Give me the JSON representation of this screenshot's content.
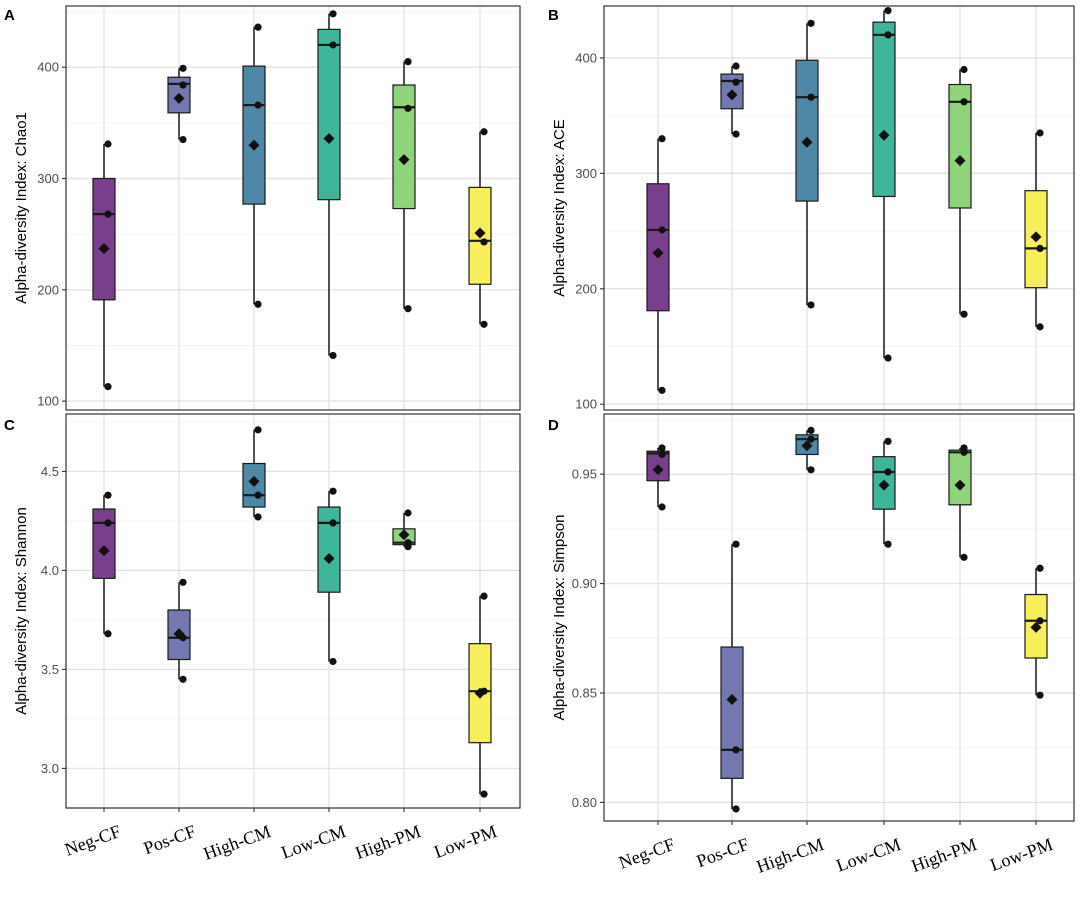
{
  "colors": {
    "Neg-CF": "#7a3f8c",
    "Pos-CF": "#7379b0",
    "High-CM": "#4f87a6",
    "Low-CM": "#3fb59a",
    "High-PM": "#8fd47a",
    "Low-PM": "#f6ef5a"
  },
  "chart_data": [
    {
      "panel": "A",
      "type": "box",
      "ylabel": "Alpha-diversity Index: Chao1",
      "ylim": [
        92,
        455
      ],
      "yticks": [
        100,
        200,
        300,
        400
      ],
      "categories": [
        "Neg-CF",
        "Pos-CF",
        "High-CM",
        "Low-CM",
        "High-PM",
        "Low-PM"
      ],
      "show_xlabels": false,
      "boxes": [
        {
          "group": "Neg-CF",
          "q1": 191,
          "median": 268,
          "q3": 300,
          "whisker_low": 113,
          "whisker_high": 331,
          "mean": 237,
          "points": [
            113,
            268,
            331
          ]
        },
        {
          "group": "Pos-CF",
          "q1": 359,
          "median": 385,
          "q3": 391,
          "whisker_low": 335,
          "whisker_high": 399,
          "mean": 372,
          "points": [
            335,
            384,
            399
          ]
        },
        {
          "group": "High-CM",
          "q1": 277,
          "median": 366,
          "q3": 401,
          "whisker_low": 187,
          "whisker_high": 436,
          "mean": 330,
          "points": [
            187,
            366,
            436
          ]
        },
        {
          "group": "Low-CM",
          "q1": 281,
          "median": 420,
          "q3": 434,
          "whisker_low": 141,
          "whisker_high": 448,
          "mean": 336,
          "points": [
            141,
            420,
            448
          ]
        },
        {
          "group": "High-PM",
          "q1": 273,
          "median": 364,
          "q3": 384,
          "whisker_low": 183,
          "whisker_high": 405,
          "mean": 317,
          "points": [
            183,
            363,
            405
          ]
        },
        {
          "group": "Low-PM",
          "q1": 205,
          "median": 244,
          "q3": 292,
          "whisker_low": 169,
          "whisker_high": 342,
          "mean": 251,
          "points": [
            169,
            243,
            342
          ]
        }
      ]
    },
    {
      "panel": "B",
      "type": "box",
      "ylabel": "Alpha-diversity Index: ACE",
      "ylim": [
        95,
        445
      ],
      "yticks": [
        100,
        200,
        300,
        400
      ],
      "categories": [
        "Neg-CF",
        "Pos-CF",
        "High-CM",
        "Low-CM",
        "High-PM",
        "Low-PM"
      ],
      "show_xlabels": false,
      "boxes": [
        {
          "group": "Neg-CF",
          "q1": 181,
          "median": 251,
          "q3": 291,
          "whisker_low": 112,
          "whisker_high": 330,
          "mean": 231,
          "points": [
            112,
            251,
            330
          ]
        },
        {
          "group": "Pos-CF",
          "q1": 356,
          "median": 380,
          "q3": 386,
          "whisker_low": 334,
          "whisker_high": 393,
          "mean": 368,
          "points": [
            334,
            379,
            393
          ]
        },
        {
          "group": "High-CM",
          "q1": 276,
          "median": 366,
          "q3": 398,
          "whisker_low": 186,
          "whisker_high": 430,
          "mean": 327,
          "points": [
            186,
            366,
            430
          ]
        },
        {
          "group": "Low-CM",
          "q1": 280,
          "median": 420,
          "q3": 431,
          "whisker_low": 140,
          "whisker_high": 441,
          "mean": 333,
          "points": [
            140,
            420,
            441
          ]
        },
        {
          "group": "High-PM",
          "q1": 270,
          "median": 362,
          "q3": 377,
          "whisker_low": 178,
          "whisker_high": 390,
          "mean": 311,
          "points": [
            178,
            362,
            390
          ]
        },
        {
          "group": "Low-PM",
          "q1": 201,
          "median": 235,
          "q3": 285,
          "whisker_low": 167,
          "whisker_high": 335,
          "mean": 245,
          "points": [
            167,
            235,
            335
          ]
        }
      ]
    },
    {
      "panel": "C",
      "type": "box",
      "ylabel": "Alpha-diversity Index: Shannon",
      "ylim": [
        2.8,
        4.79
      ],
      "yticks": [
        3.0,
        3.5,
        4.0,
        4.5
      ],
      "ytick_labels": [
        "3.0",
        "3.5",
        "4.0",
        "4.5"
      ],
      "categories": [
        "Neg-CF",
        "Pos-CF",
        "High-CM",
        "Low-CM",
        "High-PM",
        "Low-PM"
      ],
      "show_xlabels": true,
      "boxes": [
        {
          "group": "Neg-CF",
          "q1": 3.96,
          "median": 4.24,
          "q3": 4.31,
          "whisker_low": 3.68,
          "whisker_high": 4.38,
          "mean": 4.1,
          "points": [
            3.68,
            4.24,
            4.38
          ]
        },
        {
          "group": "Pos-CF",
          "q1": 3.55,
          "median": 3.66,
          "q3": 3.8,
          "whisker_low": 3.45,
          "whisker_high": 3.94,
          "mean": 3.68,
          "points": [
            3.45,
            3.66,
            3.94
          ]
        },
        {
          "group": "High-CM",
          "q1": 4.32,
          "median": 4.38,
          "q3": 4.54,
          "whisker_low": 4.27,
          "whisker_high": 4.71,
          "mean": 4.45,
          "points": [
            4.27,
            4.38,
            4.71
          ]
        },
        {
          "group": "Low-CM",
          "q1": 3.89,
          "median": 4.24,
          "q3": 4.32,
          "whisker_low": 3.54,
          "whisker_high": 4.4,
          "mean": 4.06,
          "points": [
            3.54,
            4.24,
            4.4
          ]
        },
        {
          "group": "High-PM",
          "q1": 4.13,
          "median": 4.14,
          "q3": 4.21,
          "whisker_low": 4.12,
          "whisker_high": 4.29,
          "mean": 4.18,
          "points": [
            4.12,
            4.14,
            4.29
          ]
        },
        {
          "group": "Low-PM",
          "q1": 3.13,
          "median": 3.39,
          "q3": 3.63,
          "whisker_low": 2.87,
          "whisker_high": 3.87,
          "mean": 3.38,
          "points": [
            2.87,
            3.39,
            3.87
          ]
        }
      ]
    },
    {
      "panel": "D",
      "type": "box",
      "ylabel": "Alpha-diversity Index: Simpson",
      "ylim": [
        0.7915,
        0.9775
      ],
      "yticks": [
        0.8,
        0.85,
        0.9,
        0.95
      ],
      "ytick_labels": [
        "0.80",
        "0.85",
        "0.90",
        "0.95"
      ],
      "categories": [
        "Neg-CF",
        "Pos-CF",
        "High-CM",
        "Low-CM",
        "High-PM",
        "Low-PM"
      ],
      "show_xlabels": true,
      "boxes": [
        {
          "group": "Neg-CF",
          "q1": 0.947,
          "median": 0.9595,
          "q3": 0.9605,
          "whisker_low": 0.935,
          "whisker_high": 0.962,
          "mean": 0.952,
          "points": [
            0.935,
            0.959,
            0.962
          ]
        },
        {
          "group": "Pos-CF",
          "q1": 0.811,
          "median": 0.824,
          "q3": 0.871,
          "whisker_low": 0.797,
          "whisker_high": 0.918,
          "mean": 0.847,
          "points": [
            0.797,
            0.824,
            0.918
          ]
        },
        {
          "group": "High-CM",
          "q1": 0.959,
          "median": 0.966,
          "q3": 0.968,
          "whisker_low": 0.952,
          "whisker_high": 0.97,
          "mean": 0.963,
          "points": [
            0.952,
            0.966,
            0.97
          ]
        },
        {
          "group": "Low-CM",
          "q1": 0.934,
          "median": 0.951,
          "q3": 0.958,
          "whisker_low": 0.918,
          "whisker_high": 0.965,
          "mean": 0.945,
          "points": [
            0.918,
            0.951,
            0.965
          ]
        },
        {
          "group": "High-PM",
          "q1": 0.936,
          "median": 0.96,
          "q3": 0.961,
          "whisker_low": 0.912,
          "whisker_high": 0.962,
          "mean": 0.945,
          "points": [
            0.912,
            0.96,
            0.962
          ]
        },
        {
          "group": "Low-PM",
          "q1": 0.866,
          "median": 0.883,
          "q3": 0.895,
          "whisker_low": 0.849,
          "whisker_high": 0.907,
          "mean": 0.88,
          "points": [
            0.849,
            0.883,
            0.907
          ]
        }
      ]
    }
  ]
}
